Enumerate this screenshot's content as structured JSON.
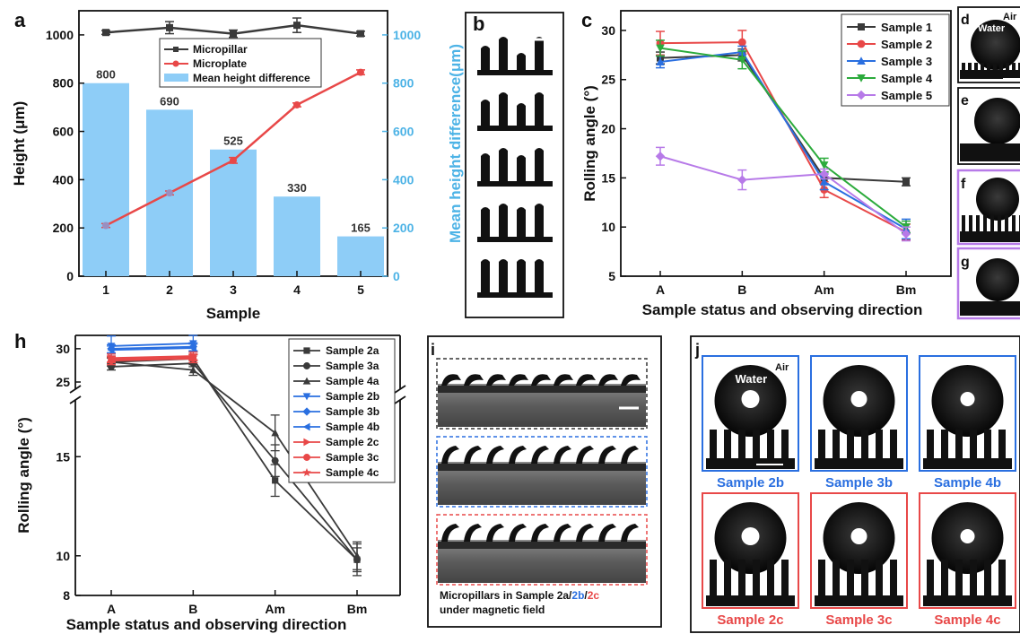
{
  "panels": {
    "a": "a",
    "b": "b",
    "c": "c",
    "d": "d",
    "e": "e",
    "f": "f",
    "g": "g",
    "h": "h",
    "i": "i",
    "j": "j"
  },
  "colors": {
    "micropillar": "#3a3a3a",
    "microplate": "#e84848",
    "bar": "#8ecdf7",
    "bar_axis": "#4db3e6",
    "blue": "#2a6fe0",
    "red": "#e84848",
    "green": "#2cab3c",
    "purple": "#b77ae8"
  },
  "chart_data": [
    {
      "panel": "a",
      "type": "bar",
      "categories": [
        "1",
        "2",
        "3",
        "4",
        "5"
      ],
      "xlabel": "Sample",
      "ylabel": "Height (μm)",
      "y2label": "Mean height difference(μm)",
      "ylim": [
        0,
        1100
      ],
      "yticks": [
        "0",
        "200",
        "400",
        "600",
        "800",
        "1000"
      ],
      "y2ticks": [
        "0",
        "200",
        "400",
        "600",
        "800",
        "1000"
      ],
      "series": [
        {
          "name": "Micropillar",
          "kind": "line",
          "color": "#3a3a3a",
          "values": [
            1010,
            1030,
            1005,
            1040,
            1005
          ],
          "errors": [
            8,
            25,
            15,
            30,
            10
          ]
        },
        {
          "name": "Microplate",
          "kind": "line",
          "color": "#e84848",
          "values": [
            210,
            345,
            480,
            710,
            845
          ],
          "errors": [
            8,
            8,
            12,
            8,
            10
          ]
        },
        {
          "name": "Mean height difference",
          "kind": "bar",
          "color": "#8ecdf7",
          "values": [
            800,
            690,
            525,
            330,
            165
          ],
          "labels": [
            "800",
            "690",
            "525",
            "330",
            "165"
          ]
        }
      ]
    },
    {
      "panel": "c",
      "type": "line",
      "categories": [
        "A",
        "B",
        "Am",
        "Bm"
      ],
      "xlabel": "Sample status and observing direction",
      "ylabel": "Rolling angle (°)",
      "ylim": [
        5,
        32
      ],
      "yticks": [
        "5",
        "10",
        "15",
        "20",
        "25",
        "30"
      ],
      "legend": "top-right",
      "series": [
        {
          "name": "Sample 1",
          "color": "#3a3a3a",
          "marker": "square",
          "values": [
            27.2,
            27.5,
            15.0,
            14.6
          ],
          "errors": [
            0.6,
            0.6,
            0.6,
            0.4
          ]
        },
        {
          "name": "Sample 2",
          "color": "#e84848",
          "marker": "circle",
          "values": [
            28.7,
            28.8,
            13.8,
            9.5
          ],
          "errors": [
            1.2,
            1.2,
            0.8,
            0.8
          ]
        },
        {
          "name": "Sample 3",
          "color": "#2a6fe0",
          "marker": "triangle",
          "values": [
            26.8,
            27.8,
            14.6,
            9.8
          ],
          "errors": [
            0.6,
            0.6,
            0.8,
            1.0
          ]
        },
        {
          "name": "Sample 4",
          "color": "#2cab3c",
          "marker": "down-triangle",
          "values": [
            28.2,
            27.0,
            16.3,
            10.0
          ],
          "errors": [
            0.8,
            0.9,
            0.7,
            0.6
          ]
        },
        {
          "name": "Sample 5",
          "color": "#b77ae8",
          "marker": "diamond",
          "values": [
            17.2,
            14.8,
            15.4,
            9.3
          ],
          "errors": [
            0.9,
            1.0,
            0.5,
            0.7
          ]
        }
      ]
    },
    {
      "panel": "h",
      "type": "line",
      "categories": [
        "A",
        "B",
        "Am",
        "Bm"
      ],
      "xlabel": "Sample status and observing direction",
      "ylabel": "Rolling angle (°)",
      "yticks": [
        "8",
        "10",
        "15",
        "25",
        "30"
      ],
      "axis_break": [
        17.5,
        25
      ],
      "legend": "top-right",
      "series": [
        {
          "name": "Sample 2a",
          "color": "#3a3a3a",
          "marker": "square",
          "values": [
            28.0,
            28.5,
            13.8,
            9.8
          ],
          "errors": [
            0.6,
            0.6,
            0.8,
            0.6
          ]
        },
        {
          "name": "Sample 3a",
          "color": "#3a3a3a",
          "marker": "circle",
          "values": [
            27.3,
            27.8,
            14.8,
            9.8
          ],
          "errors": [
            0.5,
            0.5,
            0.8,
            0.8
          ]
        },
        {
          "name": "Sample 4a",
          "color": "#3a3a3a",
          "marker": "triangle",
          "values": [
            28.0,
            26.8,
            16.2,
            10.0
          ],
          "errors": [
            0.6,
            0.8,
            0.9,
            0.7
          ]
        },
        {
          "name": "Sample 2b",
          "color": "#2a6fe0",
          "marker": "down-triangle",
          "values": [
            30.4,
            30.8,
            null,
            null
          ],
          "errors": [
            1.5,
            1.2,
            0,
            0
          ]
        },
        {
          "name": "Sample 3b",
          "color": "#2a6fe0",
          "marker": "diamond",
          "values": [
            30.0,
            30.3,
            null,
            null
          ],
          "errors": [
            0.6,
            0.6,
            0,
            0
          ]
        },
        {
          "name": "Sample 4b",
          "color": "#2a6fe0",
          "marker": "left-triangle",
          "values": [
            29.8,
            30.1,
            null,
            null
          ],
          "errors": [
            0.6,
            0.6,
            0,
            0
          ]
        },
        {
          "name": "Sample 2c",
          "color": "#e84848",
          "marker": "right-triangle",
          "values": [
            28.6,
            28.9,
            null,
            null
          ],
          "errors": [
            0.6,
            0.6,
            0,
            0
          ]
        },
        {
          "name": "Sample 3c",
          "color": "#e84848",
          "marker": "circle",
          "values": [
            28.2,
            28.5,
            null,
            null
          ],
          "errors": [
            0.6,
            0.6,
            0,
            0
          ]
        },
        {
          "name": "Sample 4c",
          "color": "#e84848",
          "marker": "star",
          "values": [
            28.4,
            28.7,
            null,
            null
          ],
          "errors": [
            0.5,
            0.5,
            0,
            0
          ]
        }
      ]
    }
  ],
  "panel_d": {
    "water": "Water",
    "air": "Air"
  },
  "panel_i": {
    "caption_prefix": "Micropillars in Sample 2a/",
    "caption_b": "2b",
    "caption_slash": "/",
    "caption_c": "2c",
    "caption_line2": "under magnetic field"
  },
  "panel_j": {
    "water": "Water",
    "air": "Air",
    "row1": [
      "Sample 2b",
      "Sample 3b",
      "Sample 4b"
    ],
    "row2": [
      "Sample 2c",
      "Sample 3c",
      "Sample 4c"
    ]
  }
}
